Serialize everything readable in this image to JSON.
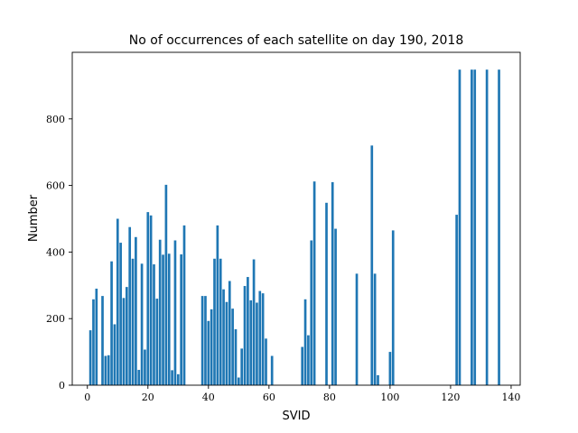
{
  "chart_data": {
    "type": "bar",
    "title": "No of occurrences of each satellite on day 190, 2018",
    "xlabel": "SVID",
    "ylabel": "Number",
    "xlim": [
      -5,
      143
    ],
    "ylim": [
      0,
      1000
    ],
    "xticks": [
      0,
      20,
      40,
      60,
      80,
      100,
      120,
      140
    ],
    "yticks": [
      0,
      200,
      400,
      600,
      800
    ],
    "grid": false,
    "bar_color": "#1f77b4",
    "x": [
      1,
      2,
      3,
      5,
      6,
      7,
      8,
      9,
      10,
      11,
      12,
      13,
      14,
      15,
      16,
      17,
      18,
      19,
      20,
      21,
      22,
      23,
      24,
      25,
      26,
      27,
      28,
      29,
      30,
      31,
      32,
      38,
      39,
      40,
      41,
      42,
      43,
      44,
      45,
      46,
      47,
      48,
      49,
      50,
      51,
      52,
      53,
      54,
      55,
      56,
      57,
      58,
      59,
      61,
      71,
      72,
      73,
      74,
      75,
      79,
      81,
      82,
      89,
      94,
      95,
      96,
      100,
      101,
      122,
      123,
      127,
      128,
      132,
      136
    ],
    "values": [
      165,
      258,
      290,
      268,
      88,
      90,
      372,
      183,
      500,
      428,
      262,
      295,
      475,
      380,
      445,
      46,
      365,
      107,
      520,
      510,
      363,
      260,
      437,
      392,
      602,
      395,
      45,
      435,
      33,
      393,
      480,
      268,
      268,
      193,
      228,
      380,
      480,
      380,
      288,
      250,
      313,
      230,
      168,
      23,
      110,
      298,
      325,
      255,
      378,
      248,
      283,
      276,
      140,
      88,
      115,
      258,
      150,
      435,
      612,
      548,
      610,
      470,
      335,
      720,
      335,
      30,
      100,
      465,
      512,
      948,
      948,
      948,
      948,
      948
    ]
  }
}
